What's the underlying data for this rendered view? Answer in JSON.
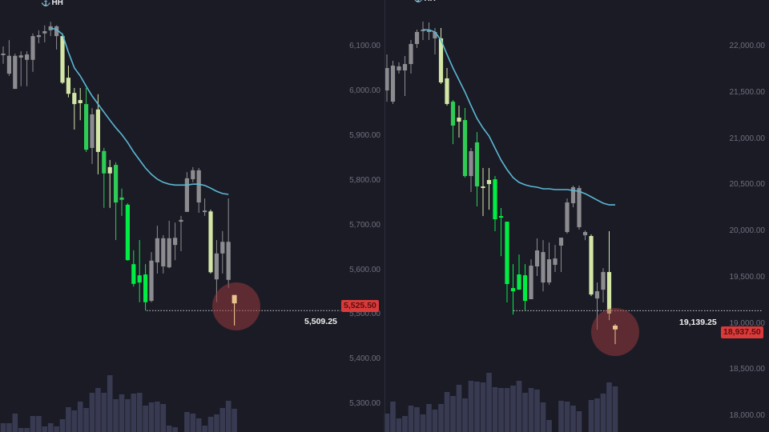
{
  "chart_data": [
    {
      "type": "candlestick",
      "marker_label": "HH",
      "marker_icon": "anchor-icon",
      "y_ticks": [
        "6,100.00",
        "6,000.00",
        "5,900.00",
        "5,800.00",
        "5,700.00",
        "5,600.00",
        "5,500.00",
        "5,400.00",
        "5,300.00"
      ],
      "y_tick_values": [
        6100,
        6000,
        5900,
        5800,
        5700,
        5600,
        5500,
        5400,
        5300
      ],
      "ylim": [
        5250,
        6200
      ],
      "current_price": 5525.5,
      "current_price_label": "5,525.50",
      "low_level": 5509.25,
      "low_level_label": "5,509.25",
      "ohlc_columns": [
        "open",
        "high",
        "low",
        "close",
        "color"
      ],
      "candles": [
        [
          6084,
          6100,
          6061,
          6082,
          "gray"
        ],
        [
          6079,
          6114,
          6034,
          6039,
          "gray"
        ],
        [
          6079,
          6084,
          6005,
          6005,
          "gray"
        ],
        [
          6080,
          6089,
          6011,
          6075,
          "gray"
        ],
        [
          6082,
          6089,
          6011,
          6070,
          "gray"
        ],
        [
          6070,
          6129,
          6043,
          6123,
          "gray"
        ],
        [
          6121,
          6136,
          6107,
          6125,
          "gray"
        ],
        [
          6129,
          6147,
          6109,
          6134,
          "gray"
        ],
        [
          6136,
          6155,
          6123,
          6145,
          "gray"
        ],
        [
          6145,
          6147,
          6093,
          6123,
          "gray"
        ],
        [
          6123,
          6129,
          6016,
          6019,
          "light"
        ],
        [
          6030,
          6057,
          5986,
          5994,
          "light"
        ],
        [
          5996,
          6007,
          5914,
          5971,
          "light"
        ],
        [
          5980,
          6007,
          5935,
          5973,
          "light"
        ],
        [
          5971,
          6007,
          5864,
          5869,
          "green"
        ],
        [
          5873,
          5962,
          5837,
          5948,
          "gray"
        ],
        [
          5959,
          5993,
          5814,
          5864,
          "light"
        ],
        [
          5866,
          5873,
          5739,
          5816,
          "green"
        ],
        [
          5830,
          5846,
          5739,
          5816,
          "light"
        ],
        [
          5835,
          5841,
          5667,
          5751,
          "green"
        ],
        [
          5762,
          5782,
          5721,
          5757,
          "green"
        ],
        [
          5746,
          5749,
          5621,
          5622,
          "bright"
        ],
        [
          5613,
          5644,
          5563,
          5569,
          "bright"
        ],
        [
          5588,
          5667,
          5528,
          5572,
          "bright"
        ],
        [
          5590,
          5613,
          5509.25,
          5528,
          "bright"
        ],
        [
          5531,
          5640,
          5528,
          5621,
          "gray"
        ],
        [
          5617,
          5699,
          5592,
          5671,
          "gray"
        ],
        [
          5608,
          5678,
          5592,
          5671,
          "gray"
        ],
        [
          5606,
          5710,
          5604,
          5671,
          "gray"
        ],
        [
          5656,
          5706,
          5622,
          5672,
          "gray"
        ],
        [
          5708,
          5721,
          5642,
          5712,
          "gray"
        ],
        [
          5730,
          5819,
          5730,
          5805,
          "gray"
        ],
        [
          5803,
          5830,
          5796,
          5823,
          "gray"
        ],
        [
          5823,
          5828,
          5728,
          5751,
          "gray"
        ],
        [
          5731,
          5760,
          5721,
          5733,
          "gray"
        ],
        [
          5731,
          5735,
          5592,
          5595,
          "light"
        ],
        [
          5637,
          5667,
          5528,
          5579,
          "gray"
        ],
        [
          5663,
          5687,
          5592,
          5637,
          "gray"
        ],
        [
          5663,
          5760,
          5560,
          5578,
          "gray"
        ],
        [
          5544,
          5544,
          5476,
          5525.5,
          "tan"
        ]
      ],
      "moving_average": {
        "start_index": 8,
        "values": [
          6141,
          6138,
          6127,
          6087,
          6052,
          6034,
          6011,
          5989,
          5971,
          5953,
          5935,
          5918,
          5903,
          5885,
          5864,
          5846,
          5828,
          5814,
          5803,
          5796,
          5792,
          5790,
          5790,
          5790,
          5792,
          5792,
          5789,
          5783,
          5776,
          5771,
          5769
        ]
      },
      "volume": [
        11,
        11,
        23,
        5,
        5,
        20,
        20,
        7,
        11,
        7,
        16,
        31,
        27,
        38,
        30,
        49,
        55,
        49,
        71,
        41,
        47,
        41,
        48,
        49,
        33,
        37,
        38,
        35,
        8,
        6,
        0,
        25,
        23,
        17,
        8,
        19,
        22,
        30,
        39,
        29
      ]
    },
    {
      "type": "candlestick",
      "marker_label": "HH",
      "marker_icon": "anchor-icon",
      "y_ticks": [
        "22,000.00",
        "21,500.00",
        "21,000.00",
        "20,500.00",
        "20,000.00",
        "19,500.00",
        "19,000.00",
        "18,500.00",
        "18,000.00"
      ],
      "y_tick_values": [
        22000,
        21500,
        21000,
        20500,
        20000,
        19500,
        19000,
        18500,
        18000
      ],
      "ylim": [
        17800,
        22500
      ],
      "current_price": 18937.5,
      "current_price_label": "18,937.50",
      "low_level": 19139.25,
      "low_level_label": "19,139.25",
      "ohlc_columns": [
        "open",
        "high",
        "low",
        "close",
        "color"
      ],
      "candles": [
        [
          21766,
          21913,
          21402,
          21524,
          "gray"
        ],
        [
          21792,
          21844,
          21377,
          21402,
          "gray"
        ],
        [
          21784,
          21827,
          21706,
          21740,
          "gray"
        ],
        [
          21740,
          21896,
          21463,
          21809,
          "gray"
        ],
        [
          21809,
          22069,
          21706,
          22026,
          "gray"
        ],
        [
          22026,
          22182,
          21983,
          22156,
          "gray"
        ],
        [
          22165,
          22268,
          22069,
          22182,
          "gray"
        ],
        [
          22156,
          22260,
          22069,
          22182,
          "gray"
        ],
        [
          22156,
          22199,
          21913,
          22087,
          "gray"
        ],
        [
          22087,
          22199,
          21593,
          21610,
          "light"
        ],
        [
          21654,
          21766,
          21359,
          21377,
          "light"
        ],
        [
          21402,
          21420,
          20943,
          21143,
          "green"
        ],
        [
          21229,
          21359,
          21013,
          21186,
          "light"
        ],
        [
          21203,
          21333,
          20580,
          20597,
          "green"
        ],
        [
          20597,
          20900,
          20424,
          20866,
          "gray"
        ],
        [
          20961,
          21073,
          20268,
          20485,
          "green"
        ],
        [
          20485,
          20684,
          20164,
          20476,
          "light"
        ],
        [
          20554,
          20684,
          20233,
          20510,
          "light"
        ],
        [
          20562,
          20597,
          20000,
          20129,
          "bright"
        ],
        [
          20164,
          20251,
          19731,
          20147,
          "bright"
        ],
        [
          20103,
          20103,
          19229,
          19428,
          "bright"
        ],
        [
          19385,
          19644,
          19099,
          19350,
          "bright"
        ],
        [
          19532,
          19748,
          19367,
          19367,
          "bright"
        ],
        [
          19523,
          19644,
          19139.25,
          19246,
          "bright"
        ],
        [
          19264,
          19696,
          19264,
          19627,
          "gray"
        ],
        [
          19619,
          19922,
          19515,
          19792,
          "gray"
        ],
        [
          19445,
          19904,
          19350,
          19774,
          "gray"
        ],
        [
          19445,
          19878,
          19419,
          19696,
          "gray"
        ],
        [
          19636,
          19852,
          19558,
          19705,
          "gray"
        ],
        [
          19844,
          19930,
          19558,
          19930,
          "gray"
        ],
        [
          19991,
          20355,
          19974,
          20311,
          "gray"
        ],
        [
          20303,
          20493,
          20259,
          20476,
          "gray"
        ],
        [
          20043,
          20493,
          20017,
          20467,
          "gray"
        ],
        [
          19956,
          20008,
          19904,
          19991,
          "gray"
        ],
        [
          19948,
          19965,
          19298,
          19315,
          "light"
        ],
        [
          19350,
          19445,
          18934,
          19272,
          "gray"
        ],
        [
          19558,
          19601,
          19229,
          19367,
          "gray"
        ],
        [
          19558,
          20000,
          19038,
          19108,
          "light"
        ],
        [
          18978,
          18995,
          18778,
          18937.5,
          "tan"
        ]
      ],
      "moving_average": {
        "start_index": 6,
        "values": [
          22182,
          22178,
          22156,
          22069,
          21913,
          21766,
          21636,
          21506,
          21359,
          21220,
          21117,
          21030,
          20900,
          20770,
          20667,
          20580,
          20528,
          20502,
          20485,
          20476,
          20459,
          20459,
          20450,
          20450,
          20450,
          20441,
          20432,
          20406,
          20372,
          20337,
          20303,
          20285,
          20285
        ]
      },
      "volume": [
        23,
        38,
        17,
        20,
        33,
        31,
        22,
        35,
        28,
        35,
        50,
        45,
        59,
        42,
        64,
        63,
        62,
        74,
        56,
        55,
        55,
        58,
        64,
        49,
        55,
        53,
        37,
        15,
        0,
        39,
        38,
        33,
        26,
        0,
        40,
        42,
        48,
        62,
        57
      ]
    }
  ],
  "colors": {
    "background": "#1b1b26",
    "gray": "#8c8c90",
    "light": "#d3e6a6",
    "green": "#2ecc55",
    "bright": "#00ee44",
    "tan": "#e8c48c",
    "moving_average": "#5ab8d4",
    "volume": "#383a52",
    "price_tag": "#d93a3a",
    "highlight_circle": "#a03c3c"
  }
}
